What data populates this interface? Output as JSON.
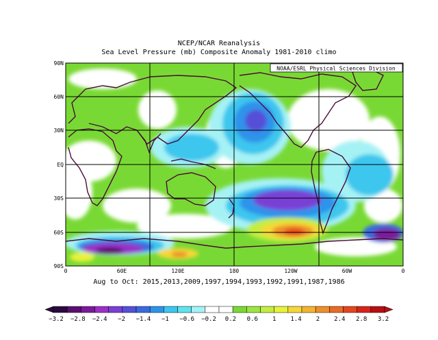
{
  "title_line1": "NCEP/NCAR Reanalysis",
  "title_line2": "Sea Level Pressure (mb) Composite Anomaly 1981-2010 climo",
  "credit": "NOAA/ESRL Physical Sciences Division",
  "subtitle": "Aug to Oct: 2015,2013,2009,1997,1994,1993,1992,1991,1987,1986",
  "lat_labels": [
    "90N",
    "60N",
    "30N",
    "EQ",
    "30S",
    "60S",
    "90S"
  ],
  "lon_labels": [
    "0",
    "60E",
    "120E",
    "180",
    "120W",
    "60W",
    "0"
  ],
  "colorbar": {
    "labels": [
      "-3.2",
      "-2.8",
      "-2.4",
      "-2",
      "-1.4",
      "-1",
      "-0.6",
      "-0.2",
      "0.2",
      "0.6",
      "1",
      "1.4",
      "2",
      "2.4",
      "2.8",
      "3.2"
    ],
    "colors": [
      "#2b0a3d",
      "#5a0f6e",
      "#7a1a9a",
      "#9b2fc4",
      "#7a3fd6",
      "#5450d8",
      "#3a6ae0",
      "#2d93ea",
      "#3cc6ee",
      "#5fe3f0",
      "#a5f2f5",
      "#ffffff",
      "#ffffff",
      "#79d934",
      "#9be640",
      "#c3ee3f",
      "#e8f23a",
      "#f5d838",
      "#f2b431",
      "#ee8f2a",
      "#e96b24",
      "#e4461f",
      "#d9231a",
      "#b80f12"
    ]
  }
}
